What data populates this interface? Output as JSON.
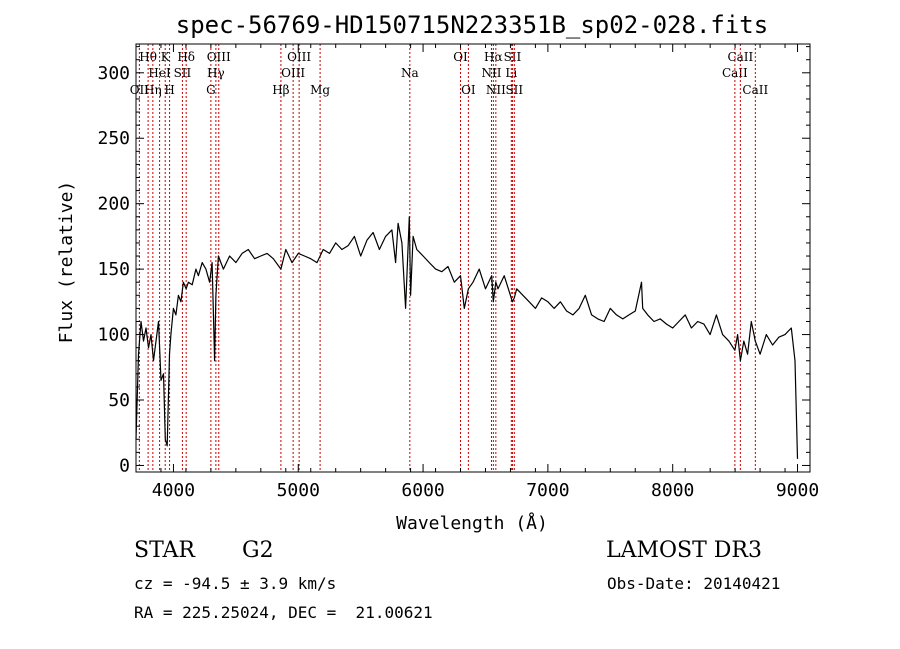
{
  "chart_data": {
    "type": "line",
    "title": "spec-56769-HD150715N223351B_sp02-028.fits",
    "xlabel": "Wavelength (Å)",
    "ylabel": "Flux (relative)",
    "xlim": [
      3700,
      9100
    ],
    "ylim": [
      -5,
      322
    ],
    "xticks": [
      4000,
      5000,
      6000,
      7000,
      8000,
      9000
    ],
    "yticks": [
      0,
      50,
      100,
      150,
      200,
      250,
      300
    ],
    "grid": false,
    "line_color": "#000000",
    "marker_color": "#cc0000",
    "series": [
      {
        "x": [
          3700,
          3720,
          3740,
          3760,
          3780,
          3800,
          3820,
          3840,
          3860,
          3880,
          3900,
          3920,
          3935,
          3950,
          3968,
          3980,
          4000,
          4020,
          4040,
          4060,
          4080,
          4101,
          4120,
          4150,
          4180,
          4200,
          4230,
          4260,
          4290,
          4310,
          4330,
          4340,
          4360,
          4380,
          4400,
          4450,
          4500,
          4550,
          4600,
          4650,
          4700,
          4750,
          4800,
          4861,
          4900,
          4950,
          5000,
          5050,
          5100,
          5150,
          5175,
          5200,
          5250,
          5300,
          5350,
          5400,
          5450,
          5500,
          5550,
          5600,
          5650,
          5700,
          5750,
          5780,
          5800,
          5830,
          5860,
          5890,
          5900,
          5920,
          5950,
          6000,
          6050,
          6100,
          6150,
          6200,
          6250,
          6300,
          6330,
          6363,
          6400,
          6450,
          6500,
          6550,
          6563,
          6583,
          6600,
          6650,
          6700,
          6716,
          6731,
          6750,
          6800,
          6850,
          6900,
          6950,
          7000,
          7050,
          7100,
          7150,
          7200,
          7250,
          7300,
          7350,
          7400,
          7450,
          7500,
          7550,
          7600,
          7650,
          7700,
          7750,
          7760,
          7800,
          7850,
          7900,
          7950,
          8000,
          8050,
          8100,
          8150,
          8200,
          8250,
          8300,
          8350,
          8400,
          8450,
          8498,
          8520,
          8542,
          8570,
          8600,
          8630,
          8662,
          8700,
          8750,
          8800,
          8850,
          8900,
          8950,
          8980,
          9000
        ],
        "y": [
          20,
          85,
          110,
          95,
          105,
          90,
          100,
          80,
          95,
          110,
          65,
          70,
          20,
          15,
          85,
          100,
          120,
          115,
          130,
          125,
          140,
          135,
          140,
          138,
          150,
          145,
          155,
          150,
          140,
          155,
          80,
          130,
          160,
          155,
          150,
          160,
          155,
          162,
          165,
          158,
          160,
          162,
          158,
          150,
          165,
          155,
          162,
          160,
          158,
          155,
          160,
          165,
          162,
          170,
          165,
          168,
          175,
          160,
          172,
          178,
          165,
          175,
          180,
          155,
          185,
          170,
          120,
          190,
          130,
          175,
          165,
          160,
          155,
          150,
          148,
          152,
          140,
          145,
          120,
          135,
          140,
          150,
          135,
          145,
          125,
          140,
          135,
          145,
          130,
          125,
          128,
          135,
          130,
          125,
          120,
          128,
          125,
          120,
          125,
          118,
          115,
          120,
          130,
          115,
          112,
          110,
          120,
          115,
          112,
          115,
          118,
          140,
          120,
          115,
          110,
          112,
          108,
          105,
          110,
          115,
          105,
          110,
          108,
          100,
          115,
          100,
          95,
          88,
          100,
          80,
          95,
          85,
          110,
          95,
          85,
          100,
          92,
          98,
          100,
          105,
          80,
          5
        ]
      }
    ],
    "line_markers": [
      {
        "x": 3727,
        "label": "OII",
        "row": 2
      },
      {
        "x": 3797,
        "label": "Hθ",
        "row": 0
      },
      {
        "x": 3835,
        "label": "Hη",
        "row": 2
      },
      {
        "x": 3889,
        "label": "HeI",
        "row": 1
      },
      {
        "x": 3934,
        "label": "K",
        "row": 0
      },
      {
        "x": 3969,
        "label": "H",
        "row": 2
      },
      {
        "x": 4072,
        "label": "SII",
        "row": 1
      },
      {
        "x": 4102,
        "label": "Hδ",
        "row": 0
      },
      {
        "x": 4300,
        "label": "G",
        "row": 2
      },
      {
        "x": 4340,
        "label": "Hγ",
        "row": 1
      },
      {
        "x": 4363,
        "label": "OIII",
        "row": 0
      },
      {
        "x": 4861,
        "label": "Hβ",
        "row": 2
      },
      {
        "x": 4959,
        "label": "OIII",
        "row": 1
      },
      {
        "x": 5007,
        "label": "OIII",
        "row": 0
      },
      {
        "x": 5175,
        "label": "Mg",
        "row": 2
      },
      {
        "x": 5894,
        "label": "Na",
        "row": 1
      },
      {
        "x": 6300,
        "label": "OI",
        "row": 0
      },
      {
        "x": 6363,
        "label": "OI",
        "row": 2
      },
      {
        "x": 6548,
        "label": "NII",
        "row": 1
      },
      {
        "x": 6563,
        "label": "Hα",
        "row": 0
      },
      {
        "x": 6583,
        "label": "NII",
        "row": 2
      },
      {
        "x": 6707,
        "label": "Li",
        "row": 1
      },
      {
        "x": 6716,
        "label": "SII",
        "row": 0
      },
      {
        "x": 6731,
        "label": "SII",
        "row": 2
      },
      {
        "x": 8498,
        "label": "CaII",
        "row": 1
      },
      {
        "x": 8542,
        "label": "CaII",
        "row": 0
      },
      {
        "x": 8662,
        "label": "CaII",
        "row": 2
      }
    ]
  },
  "info": {
    "class_label": "STAR",
    "subclass": "G2",
    "survey": "LAMOST DR3",
    "redshift_text": "cz = -94.5 ± 3.9 km/s",
    "obs_date_text": "Obs-Date: 20140421",
    "coords_text": "RA = 225.25024, DEC =  21.00621"
  }
}
